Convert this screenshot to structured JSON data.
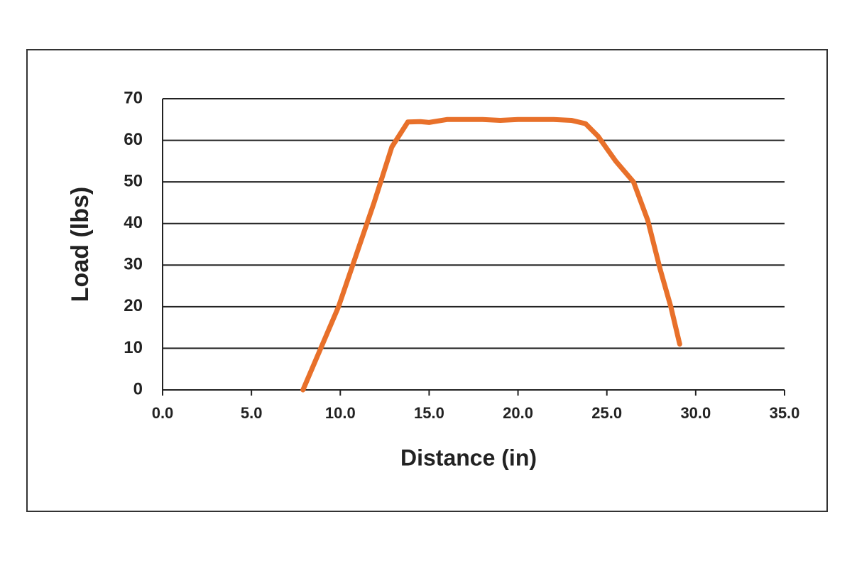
{
  "chart_data": {
    "type": "line",
    "x_label": "Distance (in)",
    "y_label": "Load (lbs)",
    "x": [
      7.9,
      9.9,
      11.9,
      12.9,
      13.8,
      14.5,
      15.0,
      16.0,
      18.0,
      19.0,
      20.0,
      22.0,
      23.0,
      23.8,
      24.5,
      25.5,
      26.5,
      27.3,
      28.0,
      28.6,
      29.1
    ],
    "series": [
      {
        "name": "Load",
        "color": "#e8702a",
        "values": [
          0,
          20,
          45,
          58.4,
          64.4,
          64.5,
          64.3,
          65,
          65,
          64.8,
          65,
          65,
          64.8,
          64,
          61,
          55,
          50,
          40.8,
          29,
          20,
          11
        ]
      }
    ],
    "xlim": [
      0,
      35
    ],
    "ylim": [
      0,
      70
    ],
    "xticks": [
      {
        "value": 0,
        "label": "0.0"
      },
      {
        "value": 5,
        "label": "5.0"
      },
      {
        "value": 10,
        "label": "10.0"
      },
      {
        "value": 15,
        "label": "15.0"
      },
      {
        "value": 20,
        "label": "20.0"
      },
      {
        "value": 25,
        "label": "25.0"
      },
      {
        "value": 30,
        "label": "30.0"
      },
      {
        "value": 35,
        "label": "35.0"
      }
    ],
    "yticks": [
      0,
      10,
      20,
      30,
      40,
      50,
      60,
      70
    ],
    "grid": true
  }
}
